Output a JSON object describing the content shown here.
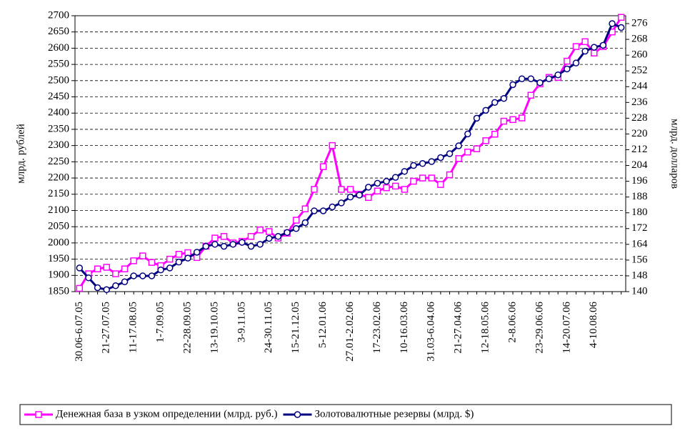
{
  "chart_data": {
    "type": "line",
    "ylabel": "млрд. рублей",
    "y2label": "млрд. долларов",
    "categories": [
      "30.06-6.07.05",
      null,
      null,
      "21-27.07.05",
      null,
      null,
      "11-17.08.05",
      null,
      null,
      "1-7.09.05",
      null,
      null,
      "22-28.09.05",
      null,
      null,
      "13-19.10.05",
      null,
      null,
      "3-9.11.05",
      null,
      null,
      "24-30.11.05",
      null,
      null,
      "15-21.12.05",
      null,
      null,
      "5-12.01.06",
      null,
      null,
      "27.01-2.02.06",
      null,
      null,
      "17-23.02.06",
      null,
      null,
      "10-16.03.06",
      null,
      null,
      "31.03-6.04.06",
      null,
      null,
      "21-27.04.06",
      null,
      null,
      "12-18.05.06",
      null,
      null,
      "2-8.06.06",
      null,
      null,
      "23-29.06.06",
      null,
      null,
      "14-20.07.06",
      null,
      null,
      "4-10.08.06",
      null,
      null,
      null
    ],
    "series": [
      {
        "name": "Денежная база в узком определении (млрд. руб.)",
        "color": "#ff00ff",
        "marker": "square",
        "values": [
          1860,
          1905,
          1920,
          1925,
          1905,
          1920,
          1945,
          1960,
          1940,
          1930,
          1950,
          1965,
          1970,
          1955,
          1990,
          2015,
          2020,
          2000,
          2005,
          2020,
          2040,
          2035,
          2015,
          2030,
          2070,
          2105,
          2165,
          2235,
          2300,
          2165,
          2165,
          2150,
          2140,
          2160,
          2170,
          2175,
          2165,
          2190,
          2200,
          2200,
          2180,
          2210,
          2260,
          2280,
          2290,
          2315,
          2335,
          2375,
          2380,
          2385,
          2455,
          2490,
          2510,
          2510,
          2560,
          2605,
          2620,
          2585,
          2605,
          2650,
          2695
        ]
      },
      {
        "name": "Золотовалютные резервы (млрд. $)",
        "color": "#000080",
        "marker": "circle",
        "axis": "y2",
        "values": [
          152,
          147,
          142,
          141,
          143,
          145,
          148,
          148,
          148,
          151,
          152,
          155,
          157,
          160,
          163,
          164,
          163,
          164,
          165,
          163,
          164,
          167,
          168,
          170,
          172,
          175,
          181,
          181,
          183,
          185,
          188,
          189,
          193,
          195,
          196,
          198,
          201,
          204,
          205,
          206,
          208,
          210,
          214,
          220,
          228,
          232,
          236,
          238,
          245,
          248,
          248,
          246,
          248,
          250,
          253,
          256,
          262,
          264,
          265,
          276,
          274
        ]
      }
    ],
    "ylim": [
      1850,
      2700
    ],
    "yticks": [
      1850,
      1900,
      1950,
      2000,
      2050,
      2100,
      2150,
      2200,
      2250,
      2300,
      2350,
      2400,
      2450,
      2500,
      2550,
      2600,
      2650,
      2700
    ],
    "y2lim": [
      140,
      280
    ],
    "y2ticks": [
      140,
      148,
      156,
      164,
      172,
      180,
      188,
      196,
      204,
      212,
      220,
      228,
      236,
      244,
      252,
      260,
      268,
      276
    ],
    "grid": true,
    "legend": "bottom"
  }
}
